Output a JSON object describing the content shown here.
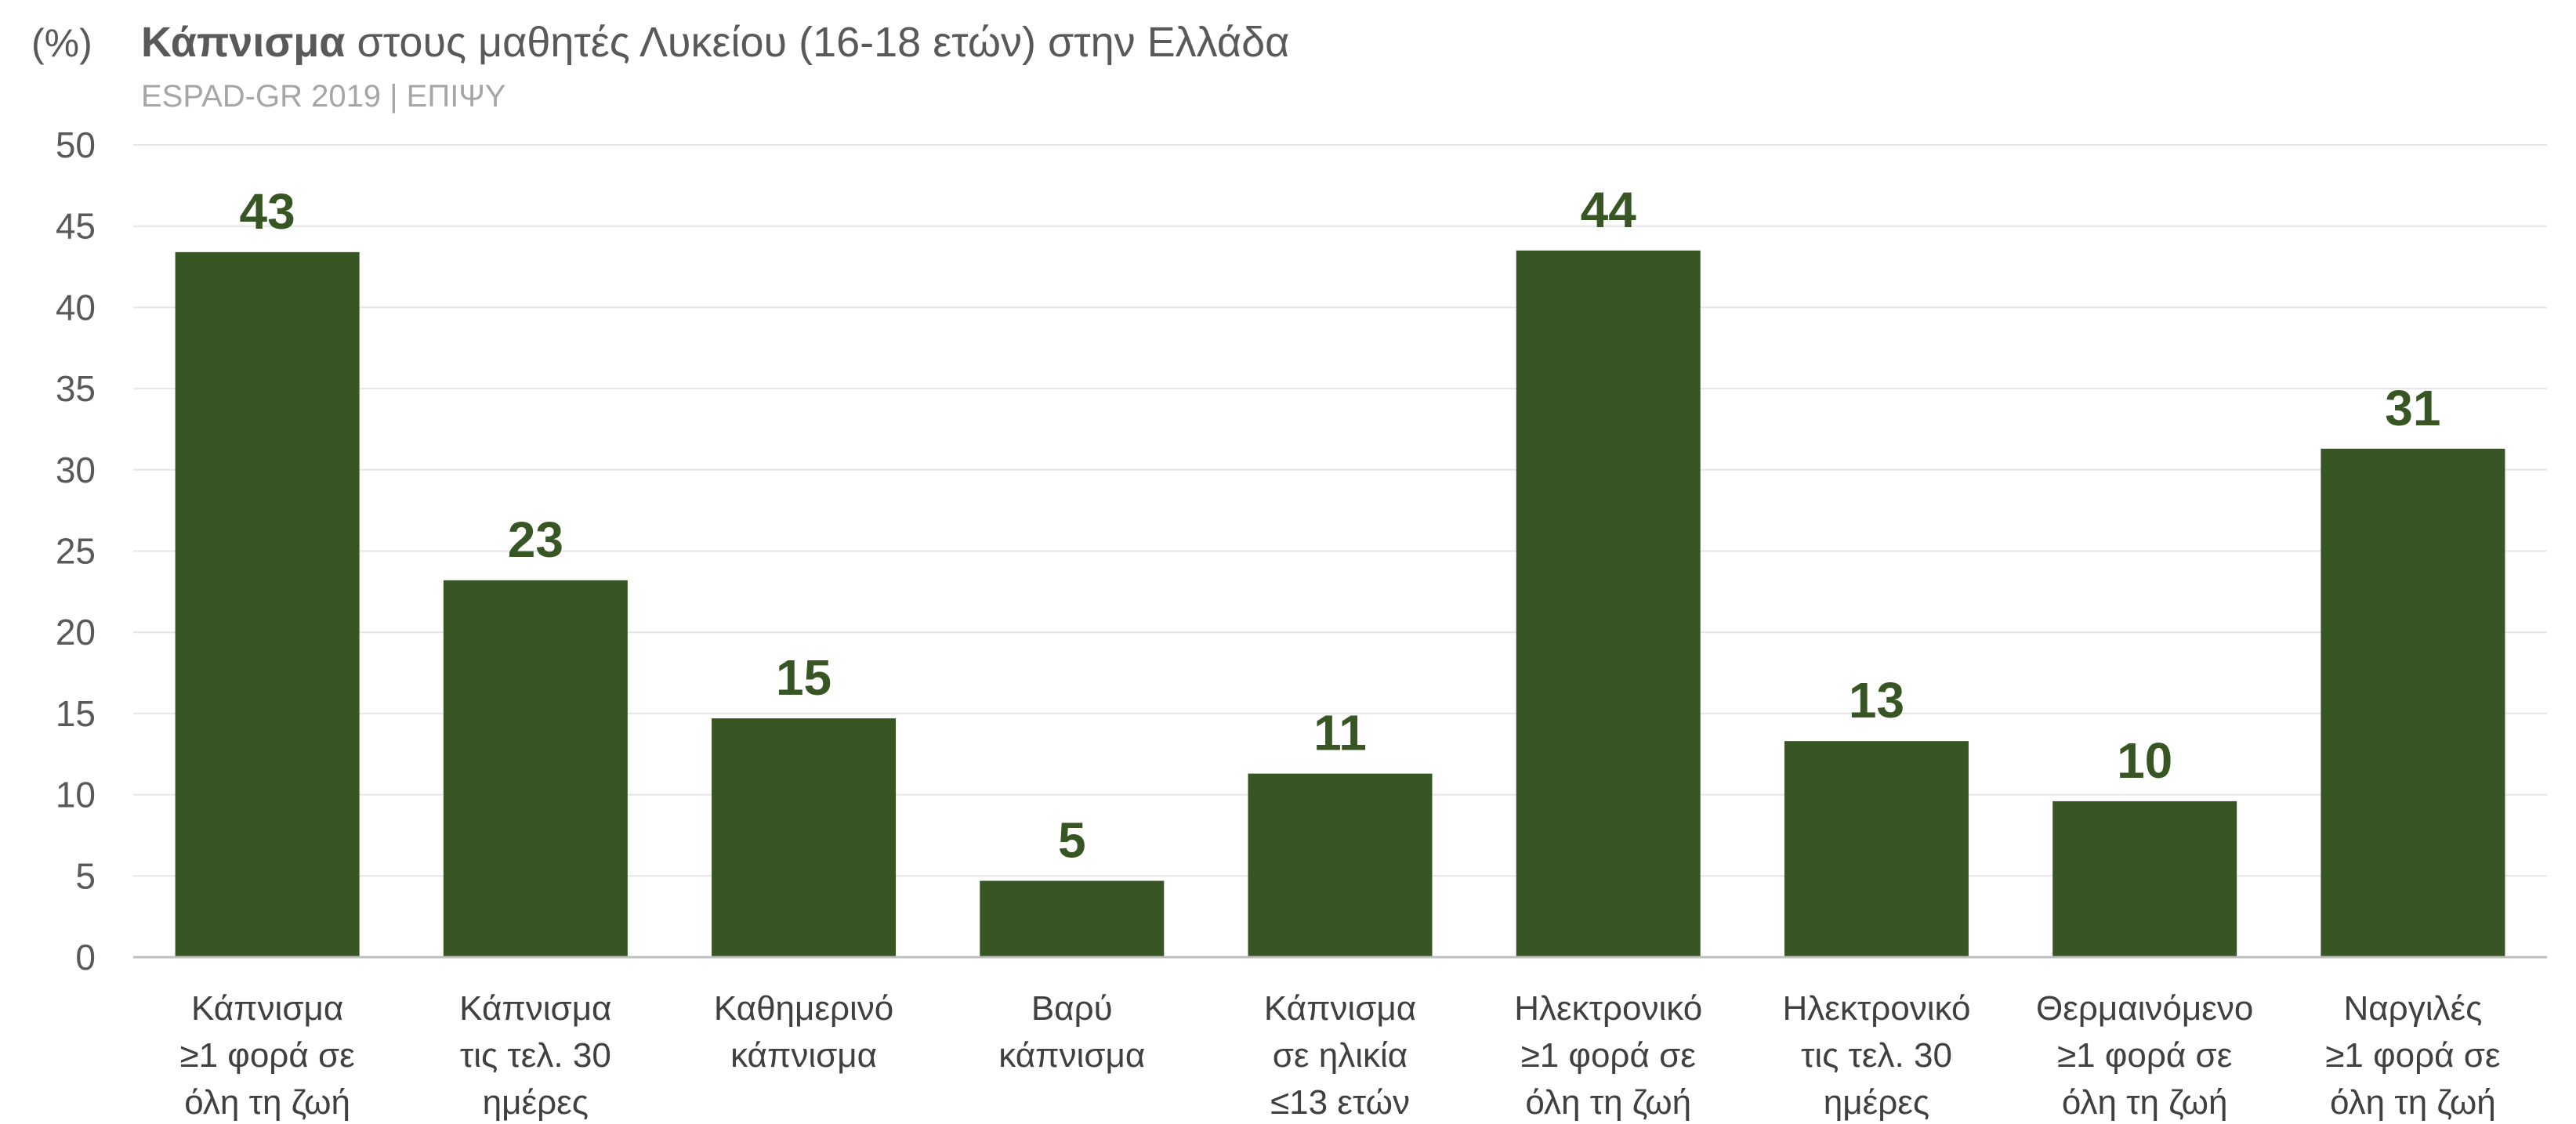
{
  "header": {
    "unit": "(%)",
    "title_bold": "Κάπνισμα",
    "title_rest": " στους μαθητές Λυκείου (16-18 ετών) στην Ελλάδα",
    "subtitle": "ESPAD-GR 2019 | ΕΠΙΨΥ"
  },
  "chart_data": {
    "type": "bar",
    "title": "Κάπνισμα στους μαθητές Λυκείου (16-18 ετών) στην Ελλάδα",
    "subtitle": "ESPAD-GR 2019 | ΕΠΙΨΥ",
    "ylabel": "(%)",
    "xlabel": "",
    "ylim": [
      0,
      50
    ],
    "yticks": [
      0,
      5,
      10,
      15,
      20,
      25,
      30,
      35,
      40,
      45,
      50
    ],
    "grid": true,
    "legend": "none",
    "bar_color": "#375623",
    "categories": [
      [
        "Κάπνισμα",
        "≥1 φορά σε",
        "όλη τη ζωή"
      ],
      [
        "Κάπνισμα",
        "τις τελ. 30",
        "ημέρες"
      ],
      [
        "Καθημερινό",
        "κάπνισμα"
      ],
      [
        "Βαρύ",
        "κάπνισμα"
      ],
      [
        "Κάπνισμα",
        "σε ηλικία",
        "≤13 ετών"
      ],
      [
        "Ηλεκτρονικό",
        "≥1 φορά σε",
        "όλη τη ζωή"
      ],
      [
        "Ηλεκτρονικό",
        "τις τελ. 30",
        "ημέρες"
      ],
      [
        "Θερμαινόμενο",
        "≥1 φορά σε",
        "όλη τη ζωή"
      ],
      [
        "Ναργιλές",
        "≥1 φορά σε",
        "όλη τη ζωή"
      ]
    ],
    "values": [
      43.4,
      23.2,
      14.7,
      4.7,
      11.3,
      43.5,
      13.3,
      9.6,
      31.3
    ],
    "data_labels": [
      "43",
      "23",
      "15",
      "5",
      "11",
      "44",
      "13",
      "10",
      "31"
    ]
  }
}
